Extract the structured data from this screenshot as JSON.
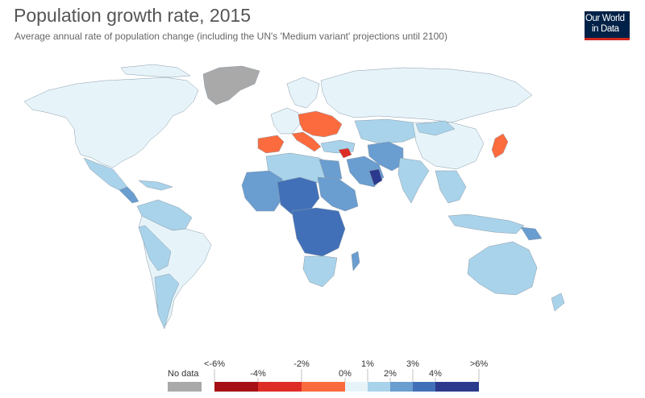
{
  "title": "Population growth rate, 2015",
  "subtitle": "Average annual rate of population change (including the UN's 'Medium variant' projections until 2100)",
  "logo": {
    "line1": "Our World",
    "line2": "in Data",
    "bg": "#002147",
    "accent": "#ce261e"
  },
  "legend": {
    "no_data_label": "No data",
    "no_data_color": "#a9a9a9",
    "bins": [
      {
        "color": "#a50f15"
      },
      {
        "color": "#de2d26"
      },
      {
        "color": "#fc6b3e"
      },
      {
        "color": "#e6f4fa"
      },
      {
        "color": "#a9d3ea"
      },
      {
        "color": "#6a9dd0"
      },
      {
        "color": "#4270b8"
      },
      {
        "color": "#2b3a8c"
      }
    ],
    "labels": [
      "<-6%",
      "-4%",
      "-2%",
      "0%",
      "1%",
      "2%",
      "3%",
      "4%",
      ">6%"
    ]
  }
}
